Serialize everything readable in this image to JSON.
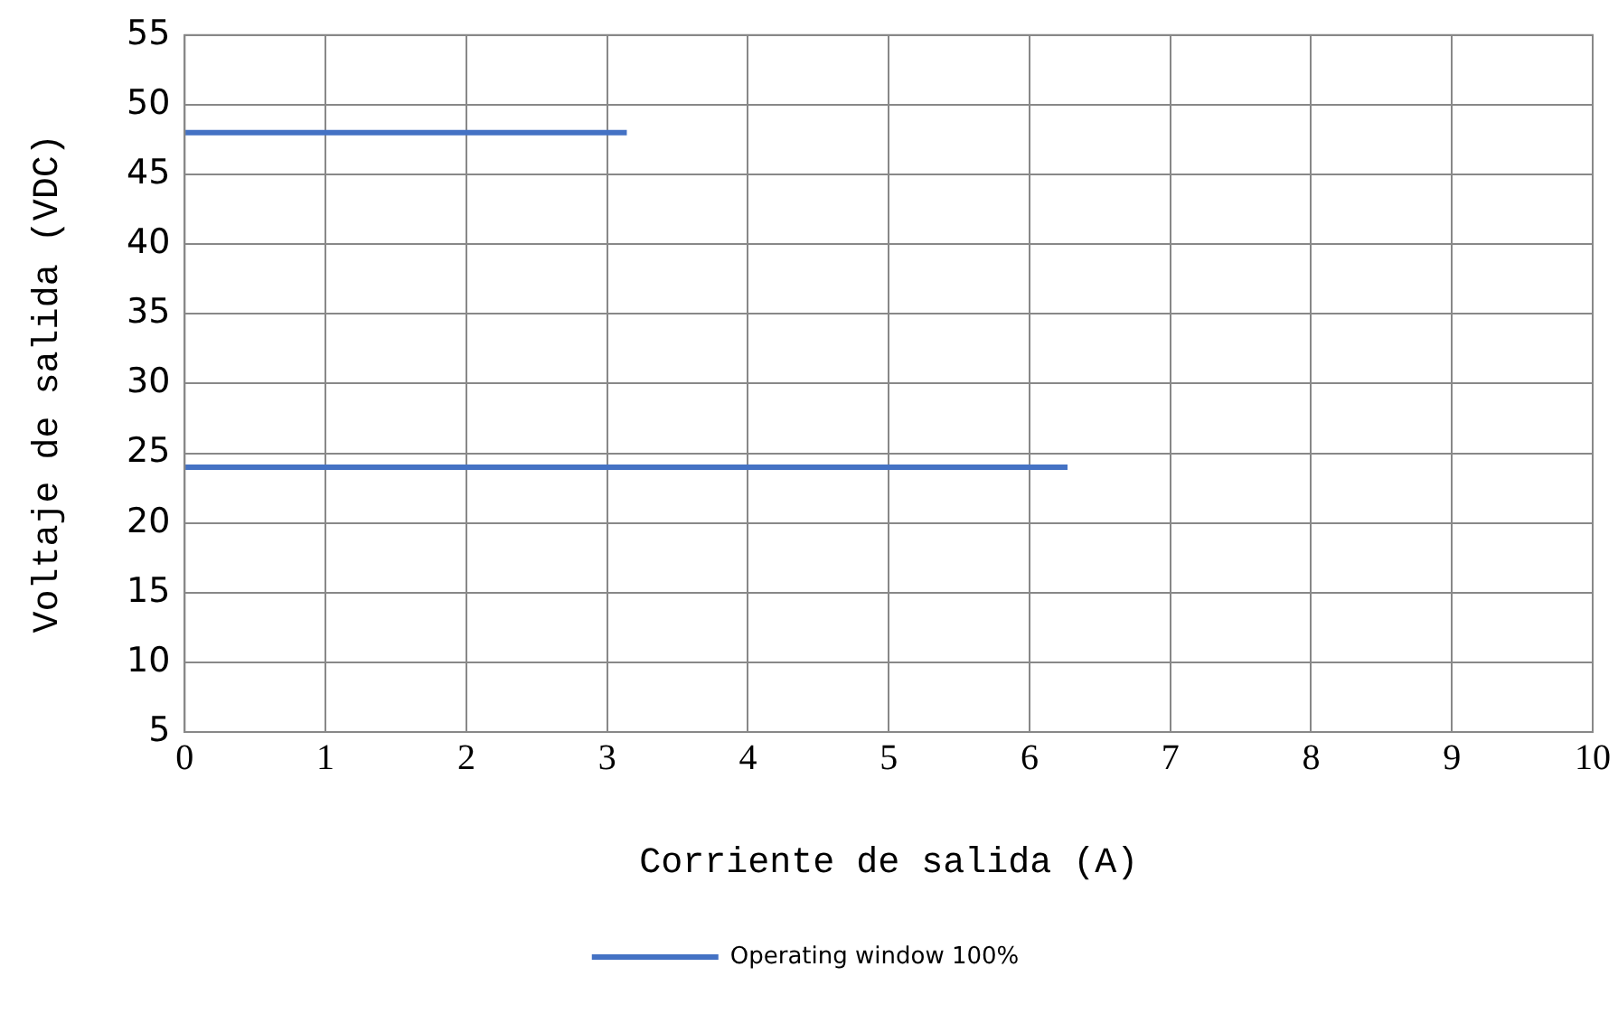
{
  "chart_data": {
    "type": "line",
    "xlabel": "Corriente de salida (A)",
    "ylabel": "Voltaje de salida (VDC)",
    "series": [
      {
        "name": "Operating window 100%",
        "color": "#4472c4",
        "x": [
          0,
          3.14,
          null,
          0,
          6.27
        ],
        "values": [
          48,
          48,
          null,
          24,
          24
        ]
      }
    ],
    "xlim": [
      0,
      10
    ],
    "xticks": [
      0,
      1,
      2,
      3,
      4,
      5,
      6,
      7,
      8,
      9,
      10
    ],
    "ylim": [
      5,
      55
    ],
    "yticks": [
      5,
      10,
      15,
      20,
      25,
      30,
      35,
      40,
      45,
      50,
      55
    ],
    "grid": true,
    "legend": "bottom",
    "marker": "none",
    "line_style": "solid"
  }
}
